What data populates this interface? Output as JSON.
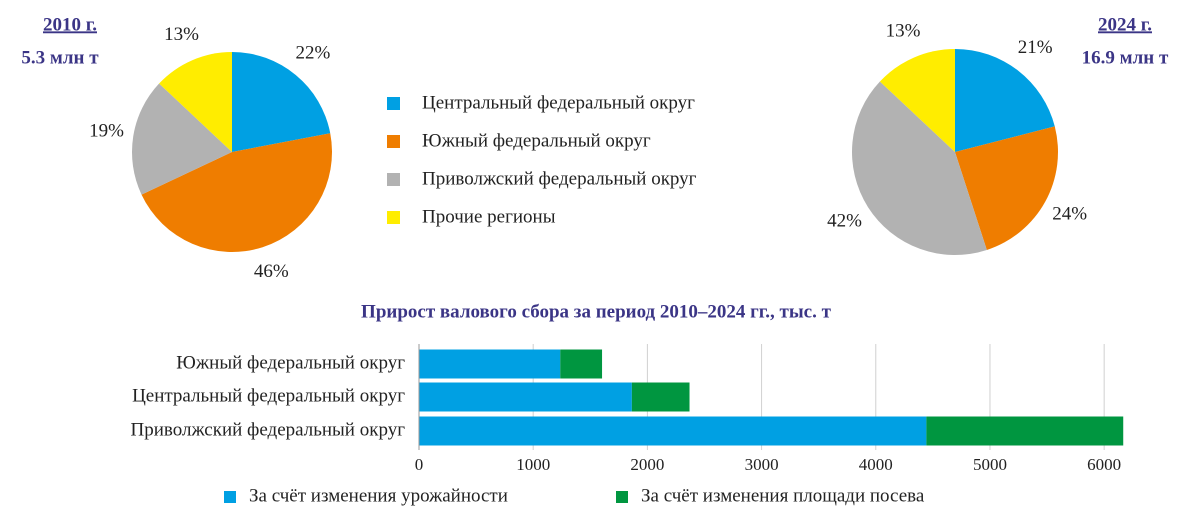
{
  "chart_data": [
    {
      "type": "pie",
      "title": "2010 г.",
      "subtitle": "5.3 млн т",
      "categories": [
        "Центральный федеральный округ",
        "Южный федеральный округ",
        "Приволжский федеральный округ",
        "Прочие регионы"
      ],
      "values": [
        22,
        46,
        19,
        13
      ],
      "value_labels": [
        "22%",
        "46%",
        "19%",
        "13%"
      ],
      "colors": [
        "#00a0e3",
        "#ef7d00",
        "#b2b2b2",
        "#ffed00"
      ]
    },
    {
      "type": "pie",
      "title": "2024 г.",
      "subtitle": "16.9 млн т",
      "categories": [
        "Центральный федеральный округ",
        "Южный федеральный округ",
        "Приволжский федеральный округ",
        "Прочие регионы"
      ],
      "values": [
        21,
        24,
        42,
        13
      ],
      "value_labels": [
        "21%",
        "24%",
        "42%",
        "13%"
      ],
      "colors": [
        "#00a0e3",
        "#ef7d00",
        "#b2b2b2",
        "#ffed00"
      ]
    },
    {
      "type": "stacked-barh",
      "title": "Прирост валового сбора за период 2010–2024 гг., тыс. т",
      "categories": [
        "Южный федеральный округ",
        "Центральный федеральный округ",
        "Приволжский федеральный округ"
      ],
      "series": [
        {
          "name": "За счёт изменения урожайности",
          "color": "#00a0e3",
          "values": [
            1237,
            1864,
            4443
          ]
        },
        {
          "name": "За счёт изменения площади посева",
          "color": "#009640",
          "values": [
            366,
            505,
            1724
          ]
        }
      ],
      "xlim": [
        0,
        6200
      ],
      "xticks": [
        0,
        1000,
        2000,
        3000,
        4000,
        5000,
        6000
      ],
      "grid": true
    }
  ]
}
